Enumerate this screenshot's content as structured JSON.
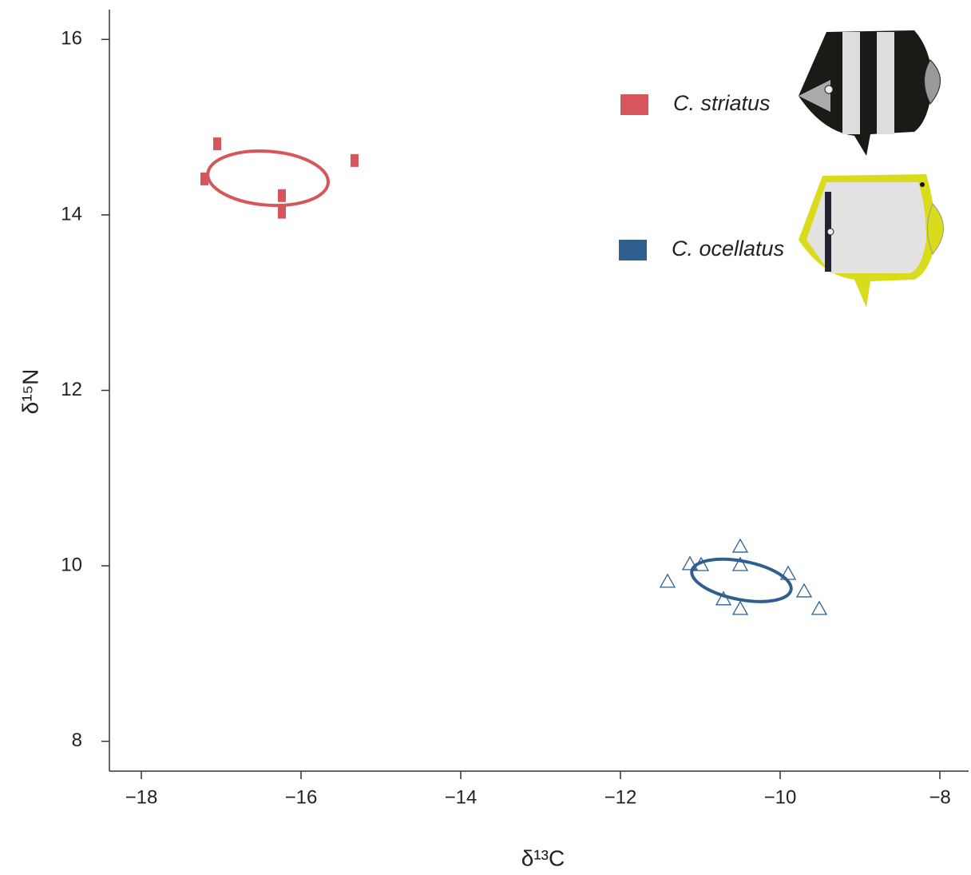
{
  "chart_data": {
    "type": "scatter",
    "x_label": "δ¹³C",
    "y_label": "δ¹⁵N",
    "xlim": [
      -18.4,
      -7.64
    ],
    "ylim": [
      7.66,
      16.34
    ],
    "xticks": [
      {
        "value": -18,
        "label": "−18"
      },
      {
        "value": -16,
        "label": "−16"
      },
      {
        "value": -14,
        "label": "−14"
      },
      {
        "value": -12,
        "label": "−12"
      },
      {
        "value": -10,
        "label": "−10"
      },
      {
        "value": -8,
        "label": "−8"
      }
    ],
    "yticks": [
      8,
      10,
      12,
      14,
      16
    ],
    "grid": false,
    "legend": "upper right",
    "series": [
      {
        "name": "C. striatus",
        "color": "#d6565b",
        "marker": "square",
        "x": [
          -17.05,
          -17.21,
          -16.24,
          -16.24,
          -15.33
        ],
        "values": [
          14.81,
          14.41,
          14.22,
          14.03,
          14.62
        ]
      },
      {
        "name": "C. ocellatus",
        "color": "#2f5f8f",
        "marker": "triangle",
        "x": [
          -11.41,
          -11.13,
          -10.99,
          -10.5,
          -10.5,
          -10.71,
          -10.5,
          -9.9,
          -9.7,
          -9.51
        ],
        "values": [
          9.82,
          10.02,
          10.01,
          10.22,
          10.01,
          9.62,
          9.51,
          9.91,
          9.71,
          9.51
        ]
      }
    ]
  }
}
